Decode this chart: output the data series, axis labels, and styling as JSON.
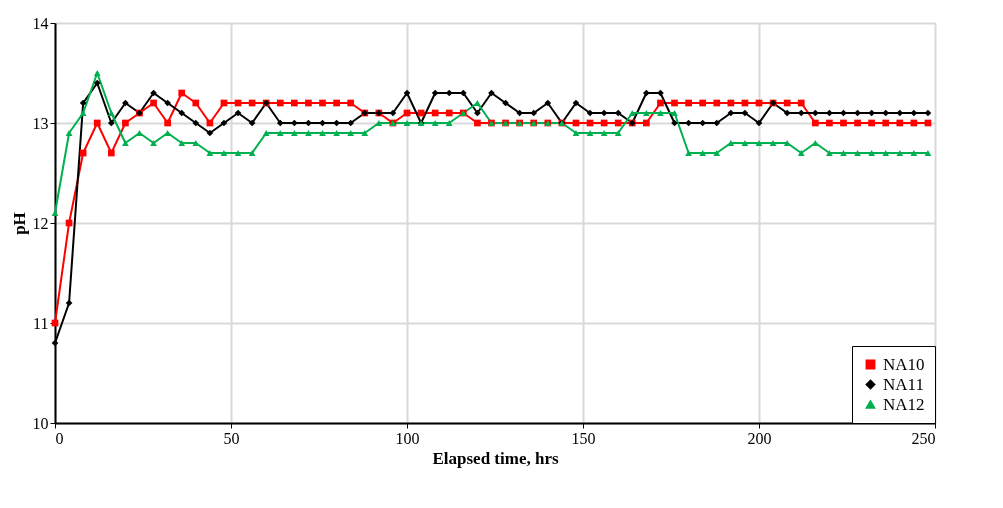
{
  "chart_data": {
    "type": "line",
    "xlabel": "Elapsed time, hrs",
    "ylabel": "pH",
    "x": [
      0,
      4,
      8,
      12,
      16,
      20,
      24,
      28,
      32,
      36,
      40,
      44,
      48,
      52,
      56,
      60,
      64,
      68,
      72,
      76,
      80,
      84,
      88,
      92,
      96,
      100,
      104,
      108,
      112,
      116,
      120,
      124,
      128,
      132,
      136,
      140,
      144,
      148,
      152,
      156,
      160,
      164,
      168,
      172,
      176,
      180,
      184,
      188,
      192,
      196,
      200,
      204,
      208,
      212,
      216,
      220,
      224,
      228,
      232,
      236,
      240,
      244,
      248
    ],
    "series": [
      {
        "name": "NA10",
        "color": "#ff0000",
        "marker": "square",
        "values": [
          11.0,
          12.0,
          12.7,
          13.0,
          12.7,
          13.0,
          13.1,
          13.2,
          13.0,
          13.3,
          13.2,
          13.0,
          13.2,
          13.2,
          13.2,
          13.2,
          13.2,
          13.2,
          13.2,
          13.2,
          13.2,
          13.2,
          13.1,
          13.1,
          13.0,
          13.1,
          13.1,
          13.1,
          13.1,
          13.1,
          13.0,
          13.0,
          13.0,
          13.0,
          13.0,
          13.0,
          13.0,
          13.0,
          13.0,
          13.0,
          13.0,
          13.0,
          13.0,
          13.2,
          13.2,
          13.2,
          13.2,
          13.2,
          13.2,
          13.2,
          13.2,
          13.2,
          13.2,
          13.2,
          13.0,
          13.0,
          13.0,
          13.0,
          13.0,
          13.0,
          13.0,
          13.0,
          13.0
        ]
      },
      {
        "name": "NA11",
        "color": "#000000",
        "marker": "diamond",
        "values": [
          10.8,
          11.2,
          13.2,
          13.4,
          13.0,
          13.2,
          13.1,
          13.3,
          13.2,
          13.1,
          13.0,
          12.9,
          13.0,
          13.1,
          13.0,
          13.2,
          13.0,
          13.0,
          13.0,
          13.0,
          13.0,
          13.0,
          13.1,
          13.1,
          13.1,
          13.3,
          13.0,
          13.3,
          13.3,
          13.3,
          13.1,
          13.3,
          13.2,
          13.1,
          13.1,
          13.2,
          13.0,
          13.2,
          13.1,
          13.1,
          13.1,
          13.0,
          13.3,
          13.3,
          13.0,
          13.0,
          13.0,
          13.0,
          13.1,
          13.1,
          13.0,
          13.2,
          13.1,
          13.1,
          13.1,
          13.1,
          13.1,
          13.1,
          13.1,
          13.1,
          13.1,
          13.1,
          13.1
        ]
      },
      {
        "name": "NA12",
        "color": "#00b050",
        "marker": "triangle",
        "values": [
          12.1,
          12.9,
          13.1,
          13.5,
          13.1,
          12.8,
          12.9,
          12.8,
          12.9,
          12.8,
          12.8,
          12.7,
          12.7,
          12.7,
          12.7,
          12.9,
          12.9,
          12.9,
          12.9,
          12.9,
          12.9,
          12.9,
          12.9,
          13.0,
          13.0,
          13.0,
          13.0,
          13.0,
          13.0,
          13.1,
          13.2,
          13.0,
          13.0,
          13.0,
          13.0,
          13.0,
          13.0,
          12.9,
          12.9,
          12.9,
          12.9,
          13.1,
          13.1,
          13.1,
          13.1,
          12.7,
          12.7,
          12.7,
          12.8,
          12.8,
          12.8,
          12.8,
          12.8,
          12.7,
          12.8,
          12.7,
          12.7,
          12.7,
          12.7,
          12.7,
          12.7,
          12.7,
          12.7
        ]
      }
    ],
    "xlim": [
      0,
      250
    ],
    "xticks": [
      0,
      50,
      100,
      150,
      200,
      250
    ],
    "ylim": [
      10,
      14
    ],
    "yticks": [
      10,
      11,
      12,
      13,
      14
    ],
    "grid": true,
    "legend": "bottom right",
    "line_style": "solid"
  }
}
